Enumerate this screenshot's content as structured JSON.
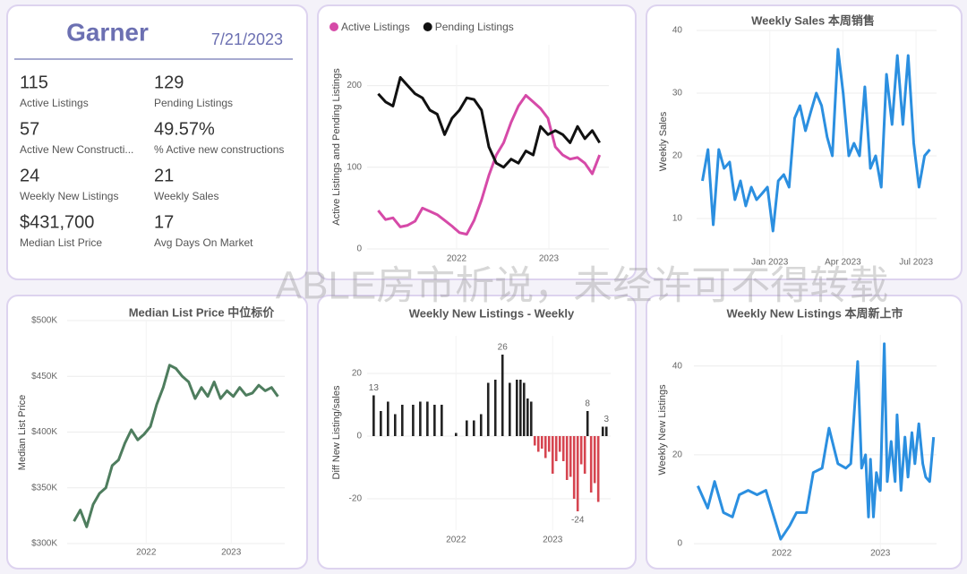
{
  "kpi_card": {
    "title": "Garner",
    "date": "7/21/2023",
    "items": [
      {
        "value": 115,
        "label": "Active Listings"
      },
      {
        "value": 129,
        "label": "Pending Listings"
      },
      {
        "value": 57,
        "label": "Active New Constructi..."
      },
      {
        "value": "49.57%",
        "label": "% Active new constructions"
      },
      {
        "value": 24,
        "label": "Weekly New Listings"
      },
      {
        "value": 21,
        "label": "Weekly Sales"
      },
      {
        "value": "$431,700",
        "label": "Median List Price"
      },
      {
        "value": 17,
        "label": "Avg Days On Market"
      }
    ]
  },
  "watermark": "ABLE房市析说，未经许可不得转载",
  "chart_data": [
    {
      "type": "line",
      "ylabel": "Active Listings and Pending Listings",
      "legend": "top-left",
      "grid": true,
      "x": [
        2021.15,
        2021.23,
        2021.31,
        2021.39,
        2021.47,
        2021.55,
        2021.63,
        2021.71,
        2021.79,
        2021.87,
        2021.95,
        2022.03,
        2022.11,
        2022.19,
        2022.27,
        2022.35,
        2022.43,
        2022.51,
        2022.59,
        2022.67,
        2022.75,
        2022.83,
        2022.91,
        2022.99,
        2023.07,
        2023.15,
        2023.23,
        2023.31,
        2023.39,
        2023.47,
        2023.55
      ],
      "series": [
        {
          "name": "Active Listings",
          "color": "#d64aa8",
          "values": [
            47,
            36,
            38,
            27,
            29,
            34,
            50,
            46,
            42,
            35,
            28,
            20,
            18,
            35,
            60,
            90,
            115,
            130,
            155,
            175,
            188,
            180,
            172,
            160,
            125,
            115,
            110,
            112,
            105,
            92,
            115
          ]
        },
        {
          "name": "Pending Listings",
          "color": "#111111",
          "values": [
            190,
            180,
            175,
            210,
            200,
            190,
            185,
            170,
            165,
            140,
            160,
            170,
            185,
            183,
            170,
            125,
            105,
            100,
            110,
            105,
            120,
            115,
            150,
            140,
            145,
            140,
            130,
            150,
            135,
            145,
            130
          ]
        }
      ],
      "xlim": [
        2021.03,
        2023.65
      ],
      "xticks": [
        2022,
        2023
      ],
      "ylim": [
        0,
        250
      ],
      "yticks": [
        0,
        100,
        200
      ]
    },
    {
      "type": "line",
      "title": "Weekly Sales 本周销售",
      "ylabel": "Weekly Sales",
      "color": "#2b8fe0",
      "grid": true,
      "x": [
        2022.77,
        2022.789,
        2022.807,
        2022.826,
        2022.844,
        2022.863,
        2022.881,
        2022.9,
        2022.918,
        2022.937,
        2022.955,
        2022.974,
        2022.992,
        2023.011,
        2023.029,
        2023.048,
        2023.066,
        2023.085,
        2023.103,
        2023.122,
        2023.14,
        2023.159,
        2023.177,
        2023.196,
        2023.214,
        2023.233,
        2023.251,
        2023.27,
        2023.288,
        2023.307,
        2023.325,
        2023.344,
        2023.362,
        2023.381,
        2023.399,
        2023.418,
        2023.436,
        2023.455,
        2023.473,
        2023.492,
        2023.51,
        2023.529,
        2023.547
      ],
      "values": [
        16,
        21,
        9,
        21,
        18,
        19,
        13,
        16,
        12,
        15,
        13,
        14,
        15,
        8,
        16,
        17,
        15,
        26,
        28,
        24,
        27,
        30,
        28,
        23,
        20,
        37,
        30,
        20,
        22,
        20,
        31,
        18,
        20,
        15,
        33,
        25,
        36,
        25,
        36,
        22,
        15,
        20,
        21
      ],
      "xlim": [
        2022.75,
        2023.57
      ],
      "xticks": [
        {
          "value": 2023.0,
          "label": "Jan 2023"
        },
        {
          "value": 2023.25,
          "label": "Apr 2023"
        },
        {
          "value": 2023.5,
          "label": "Jul 2023"
        }
      ],
      "ylim": [
        4,
        40
      ],
      "yticks": [
        10,
        20,
        30,
        40
      ]
    },
    {
      "type": "line",
      "title": "Median List Price  中位标价",
      "ylabel": "Median List Price",
      "color": "#4e7d5e",
      "grid": true,
      "x": [
        2021.15,
        2021.225,
        2021.3,
        2021.375,
        2021.45,
        2021.525,
        2021.6,
        2021.675,
        2021.75,
        2021.825,
        2021.9,
        2021.975,
        2022.05,
        2022.125,
        2022.2,
        2022.275,
        2022.35,
        2022.425,
        2022.5,
        2022.575,
        2022.65,
        2022.725,
        2022.8,
        2022.875,
        2022.95,
        2023.025,
        2023.1,
        2023.175,
        2023.25,
        2023.325,
        2023.4,
        2023.475,
        2023.55
      ],
      "values": [
        320000,
        330000,
        315000,
        335000,
        345000,
        350000,
        370000,
        375000,
        390000,
        402000,
        393000,
        398000,
        405000,
        425000,
        440000,
        460000,
        457000,
        450000,
        445000,
        430000,
        440000,
        432000,
        445000,
        430000,
        437000,
        432000,
        440000,
        433000,
        435000,
        442000,
        437000,
        440000,
        432000
      ],
      "xlim": [
        2021.07,
        2023.63
      ],
      "xticks": [
        2022,
        2023
      ],
      "ylim": [
        300000,
        500000
      ],
      "yticks": [
        {
          "value": 300000,
          "label": "$300K"
        },
        {
          "value": 350000,
          "label": "$350K"
        },
        {
          "value": 400000,
          "label": "$400K"
        },
        {
          "value": 450000,
          "label": "$450K"
        },
        {
          "value": 500000,
          "label": "$500K"
        }
      ]
    },
    {
      "type": "bar",
      "title": "Weekly New Listings - Weekly",
      "ylabel": "Diff New Listing/sales",
      "positive_color": "#222222",
      "negative_color": "#d64550",
      "grid": true,
      "x": [
        2021.148,
        2021.222,
        2021.296,
        2021.37,
        2021.444,
        2021.556,
        2021.63,
        2021.704,
        2021.778,
        2021.852,
        2022.0,
        2022.111,
        2022.185,
        2022.259,
        2022.333,
        2022.407,
        2022.481,
        2022.556,
        2022.63,
        2022.667,
        2022.704,
        2022.741,
        2022.778,
        2022.815,
        2022.852,
        2022.889,
        2022.926,
        2022.963,
        2023.0,
        2023.037,
        2023.074,
        2023.111,
        2023.148,
        2023.185,
        2023.222,
        2023.259,
        2023.296,
        2023.333,
        2023.361,
        2023.398,
        2023.435,
        2023.472,
        2023.519,
        2023.556
      ],
      "values": [
        13,
        8,
        11,
        7,
        10,
        10,
        11,
        11,
        10,
        10,
        1,
        5,
        5,
        7,
        17,
        18,
        26,
        17,
        18,
        18,
        17,
        12,
        11,
        -3,
        -5,
        -4,
        -7,
        -5,
        -12,
        -8,
        -5,
        -8,
        -14,
        -13,
        -20,
        -24,
        -9,
        -12,
        8,
        -18,
        -15,
        -21,
        3,
        3
      ],
      "value_labels": [
        "13",
        null,
        null,
        null,
        null,
        null,
        null,
        null,
        null,
        null,
        null,
        null,
        null,
        null,
        null,
        null,
        "26",
        null,
        null,
        null,
        null,
        null,
        null,
        null,
        null,
        null,
        null,
        null,
        null,
        null,
        null,
        null,
        null,
        null,
        null,
        "-24",
        null,
        null,
        "8",
        null,
        null,
        null,
        null,
        "3"
      ],
      "xlim": [
        2021.08,
        2023.6
      ],
      "xticks": [
        2022,
        2023
      ],
      "ylim": [
        -30,
        32
      ],
      "yticks": [
        -20,
        0,
        20
      ]
    },
    {
      "type": "line",
      "title": "Weekly New Listings  本周新上市",
      "ylabel": "Weekly New Listings",
      "color": "#2b8fe0",
      "grid": true,
      "x": [
        2021.15,
        2021.25,
        2021.32,
        2021.41,
        2021.5,
        2021.57,
        2021.66,
        2021.75,
        2021.84,
        2021.99,
        2022.08,
        2022.15,
        2022.25,
        2022.32,
        2022.41,
        2022.48,
        2022.57,
        2022.65,
        2022.7,
        2022.77,
        2022.81,
        2022.85,
        2022.88,
        2022.9,
        2022.93,
        2022.96,
        2023.0,
        2023.04,
        2023.07,
        2023.11,
        2023.15,
        2023.17,
        2023.21,
        2023.25,
        2023.28,
        2023.32,
        2023.35,
        2023.39,
        2023.43,
        2023.46,
        2023.5,
        2023.54
      ],
      "values": [
        13,
        8,
        14,
        7,
        6,
        11,
        12,
        11,
        12,
        1,
        4,
        7,
        7,
        16,
        17,
        26,
        18,
        17,
        18,
        41,
        17,
        20,
        6,
        19,
        6,
        16,
        12,
        45,
        14,
        23,
        14,
        29,
        12,
        24,
        15,
        25,
        18,
        27,
        18,
        15,
        14,
        24
      ],
      "xlim": [
        2021.11,
        2023.57
      ],
      "xticks": [
        2022,
        2023
      ],
      "ylim": [
        -2,
        47
      ],
      "yticks": [
        0,
        20,
        40
      ]
    }
  ]
}
